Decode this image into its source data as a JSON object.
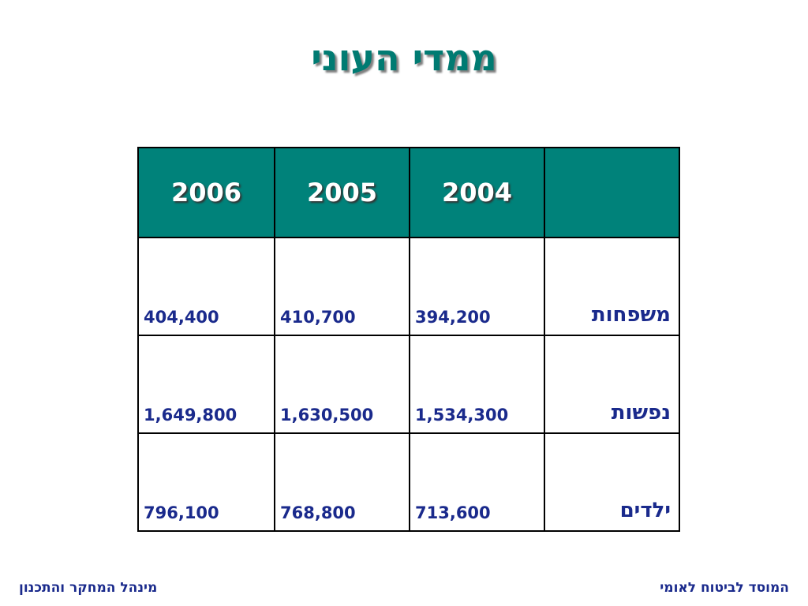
{
  "title": "ממדי העוני",
  "chart_data": {
    "type": "table",
    "title": "ממדי העוני",
    "columns": [
      "",
      "2004",
      "2005",
      "2006"
    ],
    "rows": [
      {
        "label": "משפחות",
        "values": [
          "394,200",
          "410,700",
          "404,400"
        ]
      },
      {
        "label": "נפשות",
        "values": [
          "1,534,300",
          "1,630,500",
          "1,649,800"
        ]
      },
      {
        "label": "ילדים",
        "values": [
          "713,600",
          "768,800",
          "796,100"
        ]
      }
    ]
  },
  "footer": {
    "right": "המוסד לביטוח לאומי",
    "left": "מינהל המחקר והתכנון"
  },
  "colors": {
    "header_bg": "#00827a",
    "title_color": "#007b72",
    "body_text": "#1a2a8c"
  }
}
